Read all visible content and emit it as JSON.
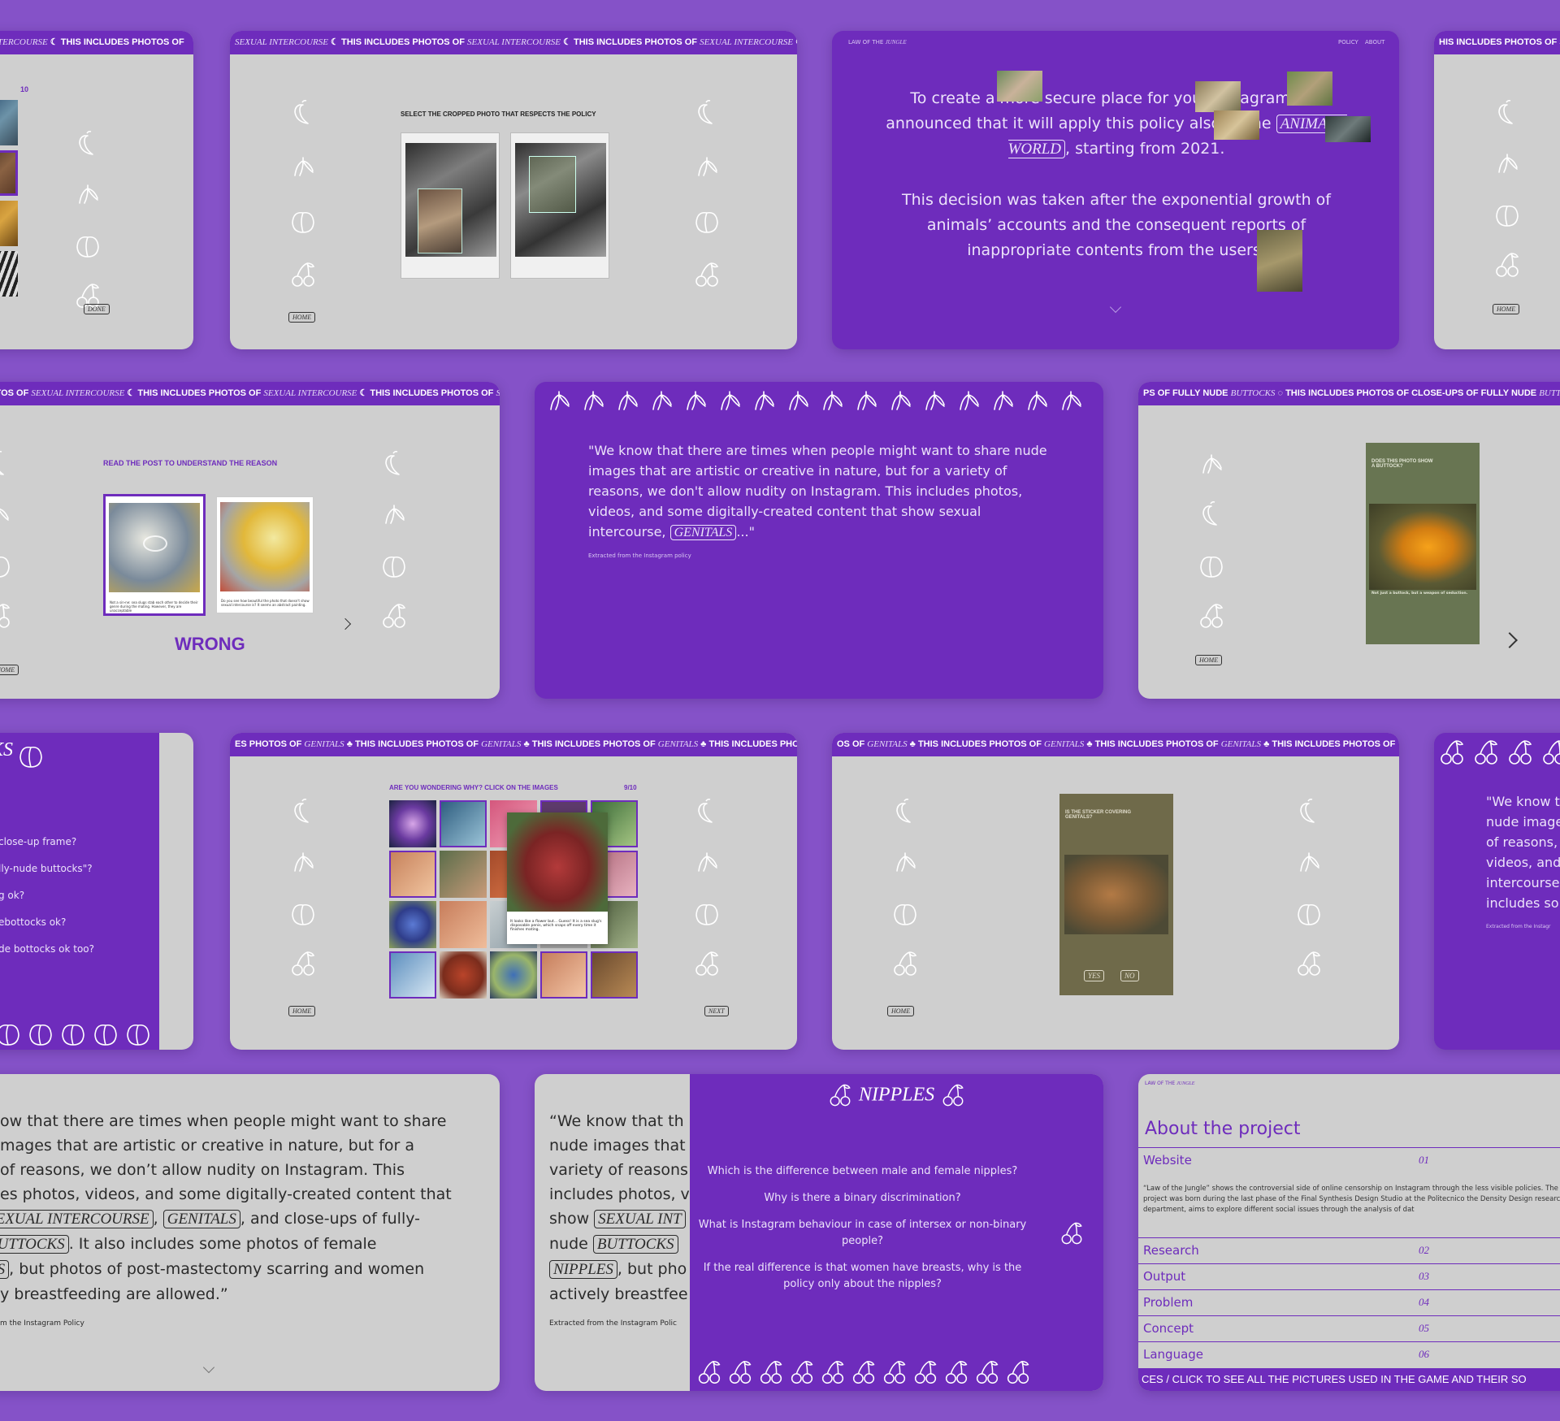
{
  "ticker": {
    "sexual": [
      "INTERCOURSE",
      " THIS INCLUDES PHOTOS OF ",
      "SEXUAL INTERCOURSE"
    ],
    "a_prefix": "INTERCOURSE",
    "b_text": "SEXUAL INTERCOURSE",
    "c_text": "HIS INCLUDES PHOTOS OF SE",
    "row2a_prefix": "OTOS OF",
    "fully_nude_a": "PS OF FULLY NUDE",
    "fully_nude_italic": "BUTTOCKS",
    "fully_nude_mid": " THIS INCLUDES PHOTOS OF CLOSE-UPS OF FULLY NUDE ",
    "genitals_prefix1": "ES PHOTOS OF",
    "genitals_prefix2": "OS OF",
    "genitals_italic": "GENITALS",
    "includes": "THIS INCLUDES PHOTOS OF",
    "includes_short": "THIS INCLUDES PHOTO"
  },
  "card_a": {
    "count": "10",
    "done_button": "DONE"
  },
  "card_b": {
    "prompt": "SELECT THE CROPPED PHOTO THAT RESPECTS THE POLICY",
    "home_button": "HOME"
  },
  "card_c": {
    "nav_brand": "LAW OF THE",
    "nav_brand_italic": "JUNGLE",
    "nav_policy": "POLICY",
    "nav_about": "ABOUT",
    "p1_a": "To create a more secure place for you, Instagram has announced that it will apply this policy also to the ",
    "p1_link": "ANIMAL'S WORLD",
    "p1_b": ", starting from 2021.",
    "p2": "This decision was taken after the exponential growth of animals’ accounts and the consequent reports of inappropriate contents from the users."
  },
  "card_d": {
    "home_button": "HOME"
  },
  "card_e": {
    "prompt": "READ THE POST TO UNDERSTAND THE REASON",
    "result": "WRONG",
    "post1_caption": "Not a sin-ne: sea slugs stab each other to decide their genre during the mating. However, they are unacceptable",
    "post2_caption": "Do you see how beautiful the photo that doesn't show sexual intercourse is? It seems an abstract painting.",
    "home_button": "HOME"
  },
  "card_f": {
    "quote_a": "\"We know that there are times when people might want to share nude images that are artistic or creative in nature, but for a variety of reasons, we don't allow nudity on Instagram. This includes photos, videos, and some digitally-created content that show sexual intercourse, ",
    "quote_link": "GENITALS",
    "quote_b": "...\"",
    "source": "Extracted from the Instagram policy"
  },
  "card_g": {
    "question": "DOES THIS PHOTO SHOW A BUTTOCK?",
    "answer": "Not just a buttock, but a weapon of seduction.",
    "home_button": "HOME"
  },
  "card_h": {
    "title": "KS",
    "questions": [
      "close-up frame?",
      "lly-nude buttocks\"?",
      "g ok?",
      "ebottocks ok?",
      "de bottocks ok too?"
    ]
  },
  "card_i": {
    "prompt": "ARE YOU WONDERING WHY? CLICK ON THE IMAGES",
    "progress": "9/10",
    "popup_caption": "It looks like a flower but... Guess! It is a sea slug's disposable penis, which snaps off every time it finishes mating.",
    "home_button": "HOME",
    "next_button": "NEXT"
  },
  "card_j": {
    "question": "IS THE STICKER COVERING GENITALS?",
    "yes": "YES",
    "no": "NO",
    "home_button": "HOME"
  },
  "card_k": {
    "quote_lines": [
      "\"We know t",
      "nude image",
      "of reasons,",
      "videos, and",
      "intercourse",
      "includes so"
    ],
    "source": "Extracted from the Instagr"
  },
  "card_l": {
    "line1": "ow that there are times when people might want to share",
    "line2": "mages that are artistic or creative in nature, but for a",
    "line3": " of reasons, we don’t allow nudity on Instagram. This",
    "line4": "es photos, videos, and some digitally-created content that",
    "tag1": "SEXUAL INTERCOURSE",
    "sep1": ", ",
    "tag2": "GENITALS",
    "line5_end": ", and close-ups of fully-",
    "tag3": "BUTTOCKS",
    "line6_end": ". It also includes some photos of female",
    "tag4": "ES",
    "line7_end": ", but photos of post-mastectomy scarring and women",
    "line8": "y breastfeeding are allowed.”",
    "source": "m the Instagram Policy"
  },
  "card_m": {
    "left_lines": [
      "“We know that th",
      "nude images that",
      "variety of reasons",
      "includes photos, v",
      "show ",
      "nude ",
      ", but pho",
      "actively breastfee"
    ],
    "tag_sexual": "SEXUAL INT",
    "tag_buttocks": "BUTTOCKS",
    "tag_nipples": "NIPPLES",
    "source": "Extracted from the Instagram Polic",
    "title": "NIPPLES",
    "questions": [
      "Which is the difference between male and female nipples?",
      "Why is there a binary discrimination?",
      "What is Instagram behaviour in case of intersex or non-binary people?",
      "If the real difference is that women have breasts, why is the policy only about the nipples?"
    ]
  },
  "card_n": {
    "brand": "LAW OF THE",
    "brand_italic": "JUNGLE",
    "title": "About the project",
    "website_label": "Website",
    "website_num": "01",
    "description": "“Law of the Jungle” shows the controversial side of online censorship on Instagram through the less visible policies. The project was born during the last phase of the Final Synthesis Design Studio at the Politecnico the Density Design research department, aims to explore different social issues through the analysis of dat",
    "rows": [
      {
        "label": "Research",
        "num": "02"
      },
      {
        "label": "Output",
        "num": "03"
      },
      {
        "label": "Problem",
        "num": "04"
      },
      {
        "label": "Concept",
        "num": "05"
      },
      {
        "label": "Language",
        "num": "06"
      }
    ],
    "footer": "CES / CLICK TO SEE ALL THE PICTURES USED IN THE GAME AND THEIR SO"
  },
  "colors": {
    "background": "#8552c8",
    "brand": "#6e2cbc",
    "card_gray": "#cfcfcf"
  },
  "icons": [
    "chili-icon",
    "banana-icon",
    "peach-icon",
    "cherry-icon"
  ]
}
